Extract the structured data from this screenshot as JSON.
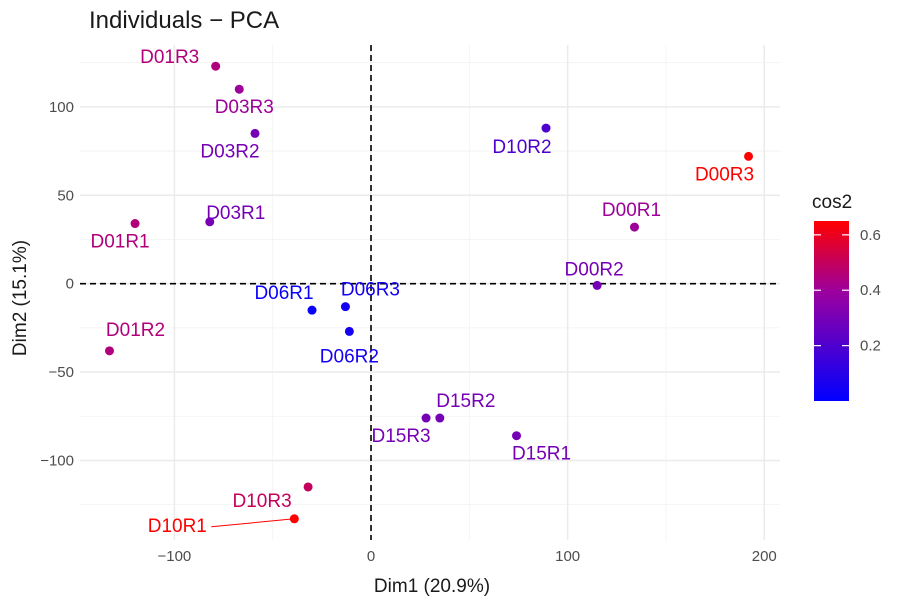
{
  "chart_data": {
    "type": "scatter",
    "title": "Individuals − PCA",
    "xlabel": "Dim1 (20.9%)",
    "ylabel": "Dim2 (15.1%)",
    "xlim": [
      -148,
      208
    ],
    "ylim": [
      -145,
      135
    ],
    "x_ticks": [
      -100,
      0,
      100,
      200
    ],
    "x_tick_labels": [
      "−100",
      "0",
      "100",
      "200"
    ],
    "y_ticks": [
      -100,
      -50,
      0,
      50,
      100
    ],
    "y_tick_labels": [
      "−100",
      "−50",
      "0",
      "50",
      "100"
    ],
    "grid": true,
    "reference_lines": {
      "x": 0,
      "y": 0,
      "style": "dashed"
    },
    "color_scale": {
      "title": "cos2",
      "min": 0.0,
      "max": 0.65,
      "low_color": "#0000ff",
      "high_color": "#ff0000",
      "ticks": [
        0.2,
        0.4,
        0.6
      ],
      "tick_labels": [
        "0.2",
        "0.4",
        "0.6"
      ]
    },
    "points": [
      {
        "label": "D01R3",
        "x": -79,
        "y": 123,
        "cos2": 0.45
      },
      {
        "label": "D03R3",
        "x": -67,
        "y": 110,
        "cos2": 0.4
      },
      {
        "label": "D03R2",
        "x": -59,
        "y": 85,
        "cos2": 0.3
      },
      {
        "label": "D01R1",
        "x": -120,
        "y": 34,
        "cos2": 0.45
      },
      {
        "label": "D03R1",
        "x": -82,
        "y": 35,
        "cos2": 0.3
      },
      {
        "label": "D01R2",
        "x": -133,
        "y": -38,
        "cos2": 0.45
      },
      {
        "label": "D06R1",
        "x": -30,
        "y": -15,
        "cos2": 0.02
      },
      {
        "label": "D06R3",
        "x": -13,
        "y": -13,
        "cos2": 0.05
      },
      {
        "label": "D06R2",
        "x": -11,
        "y": -27,
        "cos2": 0.05
      },
      {
        "label": "D10R2",
        "x": 89,
        "y": 88,
        "cos2": 0.2
      },
      {
        "label": "D00R3",
        "x": 192,
        "y": 72,
        "cos2": 0.65
      },
      {
        "label": "D00R1",
        "x": 134,
        "y": 32,
        "cos2": 0.4
      },
      {
        "label": "D00R2",
        "x": 115,
        "y": -1,
        "cos2": 0.3
      },
      {
        "label": "D15R2",
        "x": 35,
        "y": -76,
        "cos2": 0.3
      },
      {
        "label": "D15R3",
        "x": 28,
        "y": -76,
        "cos2": 0.3
      },
      {
        "label": "D15R1",
        "x": 74,
        "y": -86,
        "cos2": 0.3
      },
      {
        "label": "D10R3",
        "x": -32,
        "y": -115,
        "cos2": 0.5
      },
      {
        "label": "D10R1",
        "x": -39,
        "y": -133,
        "cos2": 0.65
      }
    ]
  }
}
